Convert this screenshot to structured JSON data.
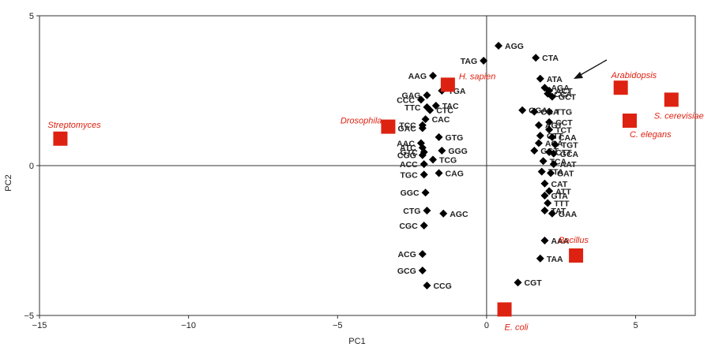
{
  "colors": {
    "codon_marker": "#000000",
    "organism_marker": "#dd2211",
    "organism_text": "#dd2211",
    "axis": "#333333",
    "frame": "#333333"
  },
  "chart_data": {
    "type": "scatter",
    "xlabel": "PC1",
    "ylabel": "PC2",
    "xlim": [
      -15,
      7
    ],
    "ylim": [
      -5,
      5
    ],
    "x_ticks": [
      -15,
      -10,
      -5,
      0,
      5
    ],
    "y_ticks": [
      -5,
      0,
      5
    ],
    "grid": false,
    "zero_lines": true,
    "series": [
      {
        "marker": "diamond",
        "points": [
          {
            "label": "AGG",
            "x": 0.4,
            "y": 4.0
          },
          {
            "label": "CTA",
            "x": 1.65,
            "y": 3.6
          },
          {
            "label": "TAG",
            "x": -0.1,
            "y": 3.5
          },
          {
            "label": "ATA",
            "x": 1.8,
            "y": 2.9
          },
          {
            "label": "AAG",
            "x": -1.8,
            "y": 3.0
          },
          {
            "label": "AGA",
            "x": 1.95,
            "y": 2.6
          },
          {
            "label": "ACT",
            "x": 2.1,
            "y": 2.5
          },
          {
            "label": "CCA",
            "x": 2.05,
            "y": 2.4
          },
          {
            "label": "GCT",
            "x": 2.2,
            "y": 2.3
          },
          {
            "label": "TGA",
            "x": -1.5,
            "y": 2.5
          },
          {
            "label": "GAG",
            "x": -2.0,
            "y": 2.35
          },
          {
            "label": "CCC",
            "x": -2.2,
            "y": 2.2
          },
          {
            "label": "TAC",
            "x": -1.7,
            "y": 2.0
          },
          {
            "label": "TTC",
            "x": -2.0,
            "y": 1.95
          },
          {
            "label": "CTC",
            "x": -1.9,
            "y": 1.85
          },
          {
            "label": "GGA",
            "x": 1.2,
            "y": 1.85
          },
          {
            "label": "TTG",
            "x": 2.1,
            "y": 1.8
          },
          {
            "label": "CGA",
            "x": 1.6,
            "y": 1.8
          },
          {
            "label": "CAC",
            "x": -2.05,
            "y": 1.55
          },
          {
            "label": "CCT",
            "x": 2.1,
            "y": 1.45
          },
          {
            "label": "TCC",
            "x": -2.15,
            "y": 1.35
          },
          {
            "label": "AGT",
            "x": 1.75,
            "y": 1.35
          },
          {
            "label": "GAC",
            "x": -2.15,
            "y": 1.25
          },
          {
            "label": "TCT",
            "x": 2.1,
            "y": 1.2
          },
          {
            "label": "GTG",
            "x": -1.6,
            "y": 0.95
          },
          {
            "label": "GTT",
            "x": 1.8,
            "y": 1.0
          },
          {
            "label": "CAA",
            "x": 2.2,
            "y": 0.95
          },
          {
            "label": "AAC",
            "x": -2.2,
            "y": 0.75
          },
          {
            "label": "ACA",
            "x": 1.75,
            "y": 0.75
          },
          {
            "label": "TGT",
            "x": 2.3,
            "y": 0.7
          },
          {
            "label": "ATC",
            "x": -2.15,
            "y": 0.6
          },
          {
            "label": "GGG",
            "x": -1.5,
            "y": 0.5
          },
          {
            "label": "GTC",
            "x": -2.1,
            "y": 0.45
          },
          {
            "label": "GGT",
            "x": 1.6,
            "y": 0.5
          },
          {
            "label": "CGG",
            "x": -2.15,
            "y": 0.35
          },
          {
            "label": "GCA",
            "x": 2.25,
            "y": 0.4
          },
          {
            "label": "CTT",
            "x": 2.1,
            "y": 0.45
          },
          {
            "label": "TCG",
            "x": -1.8,
            "y": 0.2
          },
          {
            "label": "ACC",
            "x": -2.1,
            "y": 0.05
          },
          {
            "label": "TCA",
            "x": 1.9,
            "y": 0.15
          },
          {
            "label": "AAT",
            "x": 2.25,
            "y": 0.05
          },
          {
            "label": "TGC",
            "x": -2.1,
            "y": -0.3
          },
          {
            "label": "CAG",
            "x": -1.6,
            "y": -0.25
          },
          {
            "label": "TTA",
            "x": 1.85,
            "y": -0.2
          },
          {
            "label": "GAT",
            "x": 2.15,
            "y": -0.25
          },
          {
            "label": "CAT",
            "x": 1.95,
            "y": -0.6
          },
          {
            "label": "GGC",
            "x": -2.05,
            "y": -0.9
          },
          {
            "label": "ATT",
            "x": 2.1,
            "y": -0.85
          },
          {
            "label": "GTA",
            "x": 1.95,
            "y": -1.0
          },
          {
            "label": "TTT",
            "x": 2.05,
            "y": -1.25
          },
          {
            "label": "CTG",
            "x": -2.0,
            "y": -1.5
          },
          {
            "label": "TAT",
            "x": 1.95,
            "y": -1.5
          },
          {
            "label": "GAA",
            "x": 2.2,
            "y": -1.6
          },
          {
            "label": "AGC",
            "x": -1.45,
            "y": -1.6
          },
          {
            "label": "CGC",
            "x": -2.1,
            "y": -2.0
          },
          {
            "label": "AAA",
            "x": 1.95,
            "y": -2.5
          },
          {
            "label": "ACG",
            "x": -2.15,
            "y": -2.95
          },
          {
            "label": "TAA",
            "x": 1.8,
            "y": -3.1
          },
          {
            "label": "GCG",
            "x": -2.15,
            "y": -3.5
          },
          {
            "label": "CCG",
            "x": -2.0,
            "y": -4.0
          },
          {
            "label": "CGT",
            "x": 1.05,
            "y": -3.9
          }
        ]
      },
      {
        "marker": "square",
        "points": [
          {
            "label": "Streptomyces",
            "x": -14.3,
            "y": 0.9
          },
          {
            "label": "Drosophila",
            "x": -3.3,
            "y": 1.3
          },
          {
            "label": "H. sapien",
            "x": -1.3,
            "y": 2.7
          },
          {
            "label": "Arabidopsis",
            "x": 4.5,
            "y": 2.6
          },
          {
            "label": "S. cerevisiae",
            "x": 6.2,
            "y": 2.2
          },
          {
            "label": "C. elegans",
            "x": 4.8,
            "y": 1.5
          },
          {
            "label": "Bacillus",
            "x": 3.0,
            "y": -3.0
          },
          {
            "label": "E. coli",
            "x": 0.6,
            "y": -4.8
          }
        ]
      }
    ]
  }
}
